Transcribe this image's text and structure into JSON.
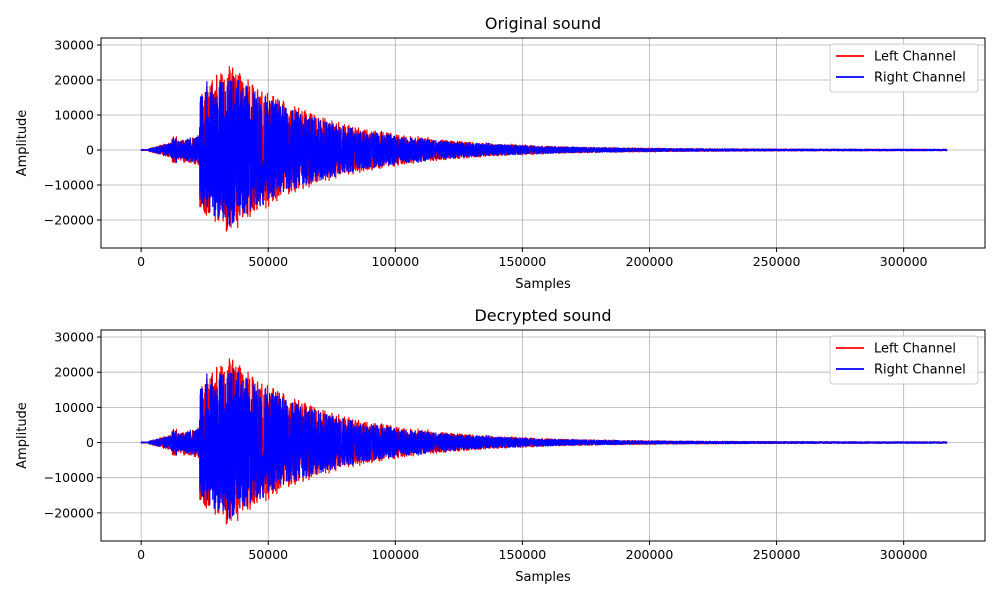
{
  "chart_data": [
    {
      "type": "line",
      "title": "Original sound",
      "xlabel": "Samples",
      "ylabel": "Amplitude",
      "xlim": [
        -15800,
        332000
      ],
      "ylim": [
        -28000,
        32000
      ],
      "xticks": [
        0,
        50000,
        100000,
        150000,
        200000,
        250000,
        300000
      ],
      "yticks": [
        -20000,
        -10000,
        0,
        10000,
        20000,
        30000
      ],
      "grid": true,
      "legend": "top-right",
      "series": [
        {
          "name": "Left Channel",
          "color": "#ff0000",
          "x_range": [
            0,
            317000
          ]
        },
        {
          "name": "Right Channel",
          "color": "#0000ff",
          "x_range": [
            0,
            317000
          ]
        }
      ]
    },
    {
      "type": "line",
      "title": "Decrypted sound",
      "xlabel": "Samples",
      "ylabel": "Amplitude",
      "xlim": [
        -15800,
        332000
      ],
      "ylim": [
        -28000,
        32000
      ],
      "xticks": [
        0,
        50000,
        100000,
        150000,
        200000,
        250000,
        300000
      ],
      "yticks": [
        -20000,
        -10000,
        0,
        10000,
        20000,
        30000
      ],
      "grid": true,
      "legend": "top-right",
      "series": [
        {
          "name": "Left Channel",
          "color": "#ff0000",
          "x_range": [
            0,
            317000
          ]
        },
        {
          "name": "Right Channel",
          "color": "#0000ff",
          "x_range": [
            0,
            317000
          ]
        }
      ]
    }
  ]
}
